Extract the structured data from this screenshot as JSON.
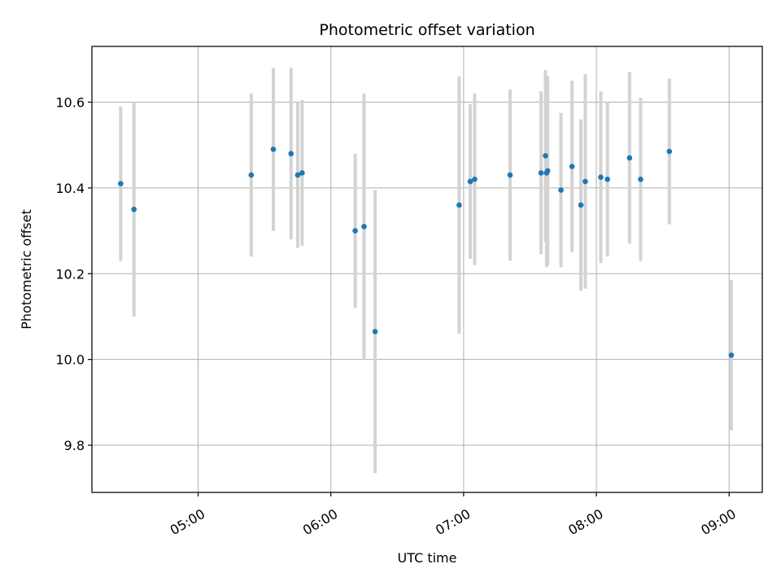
{
  "chart_data": {
    "type": "scatter",
    "title": "Photometric offset variation",
    "xlabel": "UTC time",
    "ylabel": "Photometric offset",
    "x_tick_labels": [
      "05:00",
      "06:00",
      "07:00",
      "08:00",
      "09:00"
    ],
    "x_tick_values": [
      "05:00",
      "06:00",
      "07:00",
      "08:00",
      "09:00"
    ],
    "y_ticks": [
      9.8,
      10.0,
      10.2,
      10.4,
      10.6
    ],
    "y_tick_labels": [
      "9.8",
      "10.0",
      "10.2",
      "10.4",
      "10.6"
    ],
    "xlim": [
      "04:12",
      "09:15"
    ],
    "ylim": [
      9.69,
      10.73
    ],
    "grid": true,
    "point_color": "#1f77b4",
    "errorbar_color": "#d3d3d3",
    "points": [
      {
        "t": "04:25",
        "y": 10.41,
        "err": 0.18
      },
      {
        "t": "04:31",
        "y": 10.35,
        "err": 0.25
      },
      {
        "t": "05:24",
        "y": 10.43,
        "err": 0.19
      },
      {
        "t": "05:34",
        "y": 10.49,
        "err": 0.19
      },
      {
        "t": "05:42",
        "y": 10.48,
        "err": 0.2
      },
      {
        "t": "05:45",
        "y": 10.43,
        "err": 0.17
      },
      {
        "t": "05:47",
        "y": 10.435,
        "err": 0.17
      },
      {
        "t": "06:11",
        "y": 10.3,
        "err": 0.18
      },
      {
        "t": "06:15",
        "y": 10.31,
        "err": 0.31
      },
      {
        "t": "06:20",
        "y": 10.065,
        "err": 0.33
      },
      {
        "t": "06:58",
        "y": 10.36,
        "err": 0.3
      },
      {
        "t": "07:03",
        "y": 10.415,
        "err": 0.18
      },
      {
        "t": "07:05",
        "y": 10.42,
        "err": 0.2
      },
      {
        "t": "07:21",
        "y": 10.43,
        "err": 0.2
      },
      {
        "t": "07:35",
        "y": 10.435,
        "err": 0.19
      },
      {
        "t": "07:37",
        "y": 10.475,
        "err": 0.2
      },
      {
        "t": "07:37.5",
        "y": 10.435,
        "err": 0.22
      },
      {
        "t": "07:38",
        "y": 10.44,
        "err": 0.22
      },
      {
        "t": "07:44",
        "y": 10.395,
        "err": 0.18
      },
      {
        "t": "07:49",
        "y": 10.45,
        "err": 0.2
      },
      {
        "t": "07:53",
        "y": 10.36,
        "err": 0.2
      },
      {
        "t": "07:55",
        "y": 10.415,
        "err": 0.25
      },
      {
        "t": "08:02",
        "y": 10.425,
        "err": 0.2
      },
      {
        "t": "08:05",
        "y": 10.42,
        "err": 0.18
      },
      {
        "t": "08:15",
        "y": 10.47,
        "err": 0.2
      },
      {
        "t": "08:20",
        "y": 10.42,
        "err": 0.19
      },
      {
        "t": "08:33",
        "y": 10.485,
        "err": 0.17
      },
      {
        "t": "09:01",
        "y": 10.01,
        "err": 0.175
      }
    ]
  }
}
